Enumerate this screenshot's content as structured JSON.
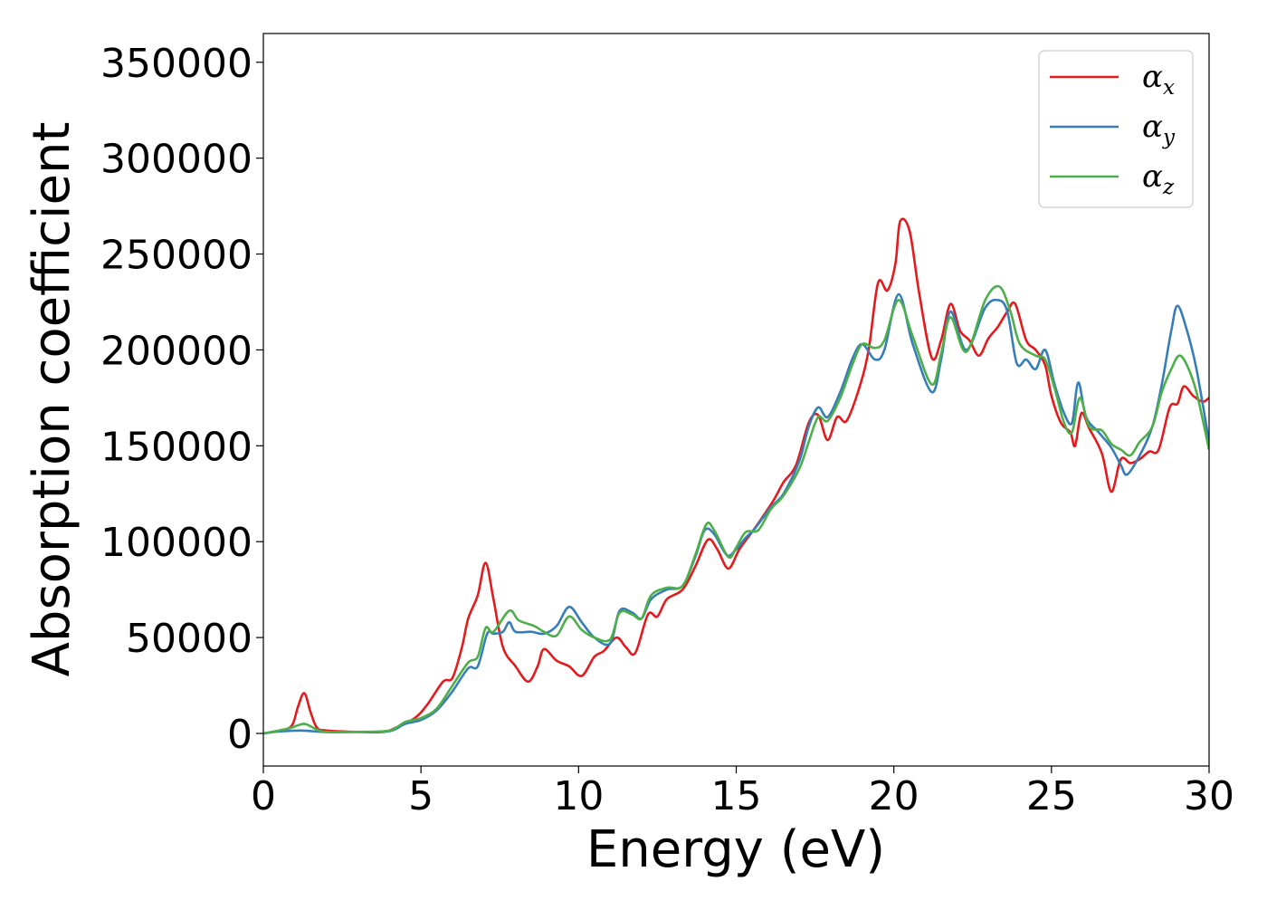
{
  "chart_data": {
    "type": "line",
    "title": "",
    "xlabel": "Energy (eV)",
    "ylabel": "Absorption coefficient",
    "xlim": [
      0,
      30
    ],
    "ylim": [
      -17000,
      365000
    ],
    "xticks": [
      0,
      5,
      10,
      15,
      20,
      25,
      30
    ],
    "yticks": [
      0,
      50000,
      100000,
      150000,
      200000,
      250000,
      300000,
      350000
    ],
    "grid": false,
    "legend_position": "top-right",
    "series": [
      {
        "name": "αx",
        "legend_symbol": "α",
        "legend_subscript": "x",
        "color": "#e41a1c",
        "points": [
          [
            0,
            0
          ],
          [
            0.5,
            1500
          ],
          [
            0.9,
            4000
          ],
          [
            1.1,
            14000
          ],
          [
            1.3,
            21000
          ],
          [
            1.5,
            11000
          ],
          [
            1.7,
            3000
          ],
          [
            2,
            1500
          ],
          [
            3,
            800
          ],
          [
            3.8,
            800
          ],
          [
            4.2,
            3000
          ],
          [
            4.8,
            8000
          ],
          [
            5.2,
            15000
          ],
          [
            5.7,
            27000
          ],
          [
            6.0,
            29000
          ],
          [
            6.3,
            45000
          ],
          [
            6.5,
            60000
          ],
          [
            6.8,
            72000
          ],
          [
            7.05,
            89000
          ],
          [
            7.3,
            70000
          ],
          [
            7.6,
            45000
          ],
          [
            8.0,
            35000
          ],
          [
            8.4,
            27000
          ],
          [
            8.7,
            35000
          ],
          [
            8.9,
            44000
          ],
          [
            9.3,
            38000
          ],
          [
            9.7,
            35000
          ],
          [
            10.1,
            30000
          ],
          [
            10.5,
            40000
          ],
          [
            10.8,
            43000
          ],
          [
            11.2,
            50000
          ],
          [
            11.5,
            45000
          ],
          [
            11.8,
            42000
          ],
          [
            12.2,
            62000
          ],
          [
            12.5,
            61000
          ],
          [
            12.8,
            70000
          ],
          [
            13.3,
            75000
          ],
          [
            13.7,
            87000
          ],
          [
            14.1,
            101000
          ],
          [
            14.4,
            96000
          ],
          [
            14.75,
            86000
          ],
          [
            15.1,
            96000
          ],
          [
            15.5,
            105000
          ],
          [
            15.8,
            112000
          ],
          [
            16.2,
            122000
          ],
          [
            16.5,
            131000
          ],
          [
            16.9,
            140000
          ],
          [
            17.3,
            162000
          ],
          [
            17.6,
            166000
          ],
          [
            17.9,
            153000
          ],
          [
            18.2,
            165000
          ],
          [
            18.5,
            163000
          ],
          [
            18.9,
            180000
          ],
          [
            19.2,
            200000
          ],
          [
            19.5,
            235000
          ],
          [
            19.8,
            231000
          ],
          [
            20.05,
            245000
          ],
          [
            20.2,
            267000
          ],
          [
            20.5,
            262000
          ],
          [
            20.8,
            230000
          ],
          [
            21.2,
            196000
          ],
          [
            21.5,
            205000
          ],
          [
            21.8,
            224000
          ],
          [
            22.1,
            210000
          ],
          [
            22.4,
            205000
          ],
          [
            22.7,
            197000
          ],
          [
            23.0,
            206000
          ],
          [
            23.3,
            212000
          ],
          [
            23.6,
            220000
          ],
          [
            23.85,
            224000
          ],
          [
            24.2,
            205000
          ],
          [
            24.5,
            200000
          ],
          [
            24.8,
            192000
          ],
          [
            25.0,
            176000
          ],
          [
            25.3,
            162000
          ],
          [
            25.6,
            157000
          ],
          [
            25.75,
            150000
          ],
          [
            25.95,
            167000
          ],
          [
            26.2,
            159000
          ],
          [
            26.6,
            146000
          ],
          [
            26.9,
            126000
          ],
          [
            27.2,
            143000
          ],
          [
            27.5,
            141000
          ],
          [
            27.8,
            143000
          ],
          [
            28.1,
            147000
          ],
          [
            28.4,
            148000
          ],
          [
            28.75,
            170000
          ],
          [
            29.0,
            172000
          ],
          [
            29.2,
            181000
          ],
          [
            29.5,
            176000
          ],
          [
            29.8,
            173000
          ],
          [
            30,
            175000
          ]
        ]
      },
      {
        "name": "αy",
        "legend_symbol": "α",
        "legend_subscript": "y",
        "color": "#377eb8",
        "points": [
          [
            0,
            0
          ],
          [
            0.5,
            1000
          ],
          [
            1.2,
            1500
          ],
          [
            2,
            700
          ],
          [
            3,
            800
          ],
          [
            4,
            1200
          ],
          [
            4.5,
            5000
          ],
          [
            5,
            7000
          ],
          [
            5.5,
            12000
          ],
          [
            6.0,
            22000
          ],
          [
            6.5,
            34000
          ],
          [
            6.8,
            35000
          ],
          [
            7.1,
            52000
          ],
          [
            7.3,
            52000
          ],
          [
            7.6,
            53000
          ],
          [
            7.8,
            58000
          ],
          [
            8.0,
            53000
          ],
          [
            8.5,
            53000
          ],
          [
            8.9,
            52000
          ],
          [
            9.3,
            56000
          ],
          [
            9.7,
            66000
          ],
          [
            10.1,
            58000
          ],
          [
            10.5,
            50000
          ],
          [
            11.0,
            47000
          ],
          [
            11.3,
            64000
          ],
          [
            11.7,
            63000
          ],
          [
            12.0,
            60000
          ],
          [
            12.3,
            70000
          ],
          [
            12.8,
            75000
          ],
          [
            13.3,
            77000
          ],
          [
            13.7,
            92000
          ],
          [
            14.0,
            106000
          ],
          [
            14.3,
            104000
          ],
          [
            14.7,
            93000
          ],
          [
            15.0,
            96000
          ],
          [
            15.3,
            102000
          ],
          [
            15.6,
            107000
          ],
          [
            16.1,
            118000
          ],
          [
            16.5,
            125000
          ],
          [
            17.0,
            142000
          ],
          [
            17.3,
            160000
          ],
          [
            17.6,
            170000
          ],
          [
            17.9,
            165000
          ],
          [
            18.3,
            178000
          ],
          [
            18.7,
            196000
          ],
          [
            19.0,
            203000
          ],
          [
            19.4,
            195000
          ],
          [
            19.7,
            200000
          ],
          [
            20.15,
            229000
          ],
          [
            20.6,
            203000
          ],
          [
            21.2,
            178000
          ],
          [
            21.5,
            195000
          ],
          [
            21.8,
            220000
          ],
          [
            22.3,
            200000
          ],
          [
            22.9,
            222000
          ],
          [
            23.3,
            226000
          ],
          [
            23.6,
            220000
          ],
          [
            23.9,
            193000
          ],
          [
            24.2,
            195000
          ],
          [
            24.5,
            190000
          ],
          [
            24.8,
            200000
          ],
          [
            25.1,
            182000
          ],
          [
            25.4,
            167000
          ],
          [
            25.65,
            162000
          ],
          [
            25.85,
            183000
          ],
          [
            26.1,
            165000
          ],
          [
            26.5,
            157000
          ],
          [
            26.9,
            149000
          ],
          [
            27.2,
            140000
          ],
          [
            27.4,
            135000
          ],
          [
            27.8,
            145000
          ],
          [
            28.2,
            160000
          ],
          [
            28.5,
            182000
          ],
          [
            28.8,
            210000
          ],
          [
            29.0,
            223000
          ],
          [
            29.3,
            210000
          ],
          [
            29.6,
            190000
          ],
          [
            30,
            152000
          ]
        ]
      },
      {
        "name": "αz",
        "legend_symbol": "α",
        "legend_subscript": "z",
        "color": "#4daf4a",
        "points": [
          [
            0,
            0
          ],
          [
            0.5,
            1500
          ],
          [
            0.9,
            3000
          ],
          [
            1.3,
            5000
          ],
          [
            1.7,
            2000
          ],
          [
            2,
            800
          ],
          [
            3,
            800
          ],
          [
            4,
            1500
          ],
          [
            4.5,
            6000
          ],
          [
            5,
            8000
          ],
          [
            5.5,
            13000
          ],
          [
            6.0,
            25000
          ],
          [
            6.5,
            37000
          ],
          [
            6.8,
            40000
          ],
          [
            7.05,
            55000
          ],
          [
            7.3,
            53000
          ],
          [
            7.8,
            64000
          ],
          [
            8.1,
            59000
          ],
          [
            8.6,
            56000
          ],
          [
            8.9,
            53000
          ],
          [
            9.3,
            51000
          ],
          [
            9.7,
            61000
          ],
          [
            10.1,
            54000
          ],
          [
            10.5,
            50000
          ],
          [
            11.0,
            49000
          ],
          [
            11.3,
            63000
          ],
          [
            11.7,
            62000
          ],
          [
            12.0,
            60000
          ],
          [
            12.3,
            72000
          ],
          [
            12.8,
            76000
          ],
          [
            13.3,
            77000
          ],
          [
            13.7,
            93000
          ],
          [
            14.05,
            109000
          ],
          [
            14.3,
            106000
          ],
          [
            14.75,
            92000
          ],
          [
            15.0,
            97000
          ],
          [
            15.3,
            105000
          ],
          [
            15.7,
            106000
          ],
          [
            16.1,
            117000
          ],
          [
            16.5,
            124000
          ],
          [
            17.0,
            138000
          ],
          [
            17.3,
            152000
          ],
          [
            17.6,
            165000
          ],
          [
            17.9,
            163000
          ],
          [
            18.3,
            175000
          ],
          [
            18.7,
            193000
          ],
          [
            19.0,
            203000
          ],
          [
            19.4,
            201000
          ],
          [
            19.7,
            205000
          ],
          [
            20.15,
            226000
          ],
          [
            20.6,
            207000
          ],
          [
            21.2,
            182000
          ],
          [
            21.5,
            198000
          ],
          [
            21.8,
            217000
          ],
          [
            22.3,
            199000
          ],
          [
            22.9,
            226000
          ],
          [
            23.35,
            233000
          ],
          [
            23.7,
            220000
          ],
          [
            24.0,
            203000
          ],
          [
            24.5,
            197000
          ],
          [
            24.8,
            195000
          ],
          [
            25.1,
            180000
          ],
          [
            25.4,
            162000
          ],
          [
            25.65,
            157000
          ],
          [
            25.9,
            175000
          ],
          [
            26.2,
            160000
          ],
          [
            26.6,
            158000
          ],
          [
            26.9,
            151000
          ],
          [
            27.2,
            148000
          ],
          [
            27.5,
            145000
          ],
          [
            27.8,
            152000
          ],
          [
            28.2,
            160000
          ],
          [
            28.5,
            178000
          ],
          [
            28.8,
            190000
          ],
          [
            29.05,
            197000
          ],
          [
            29.3,
            192000
          ],
          [
            29.6,
            178000
          ],
          [
            30,
            148000
          ]
        ]
      }
    ]
  }
}
